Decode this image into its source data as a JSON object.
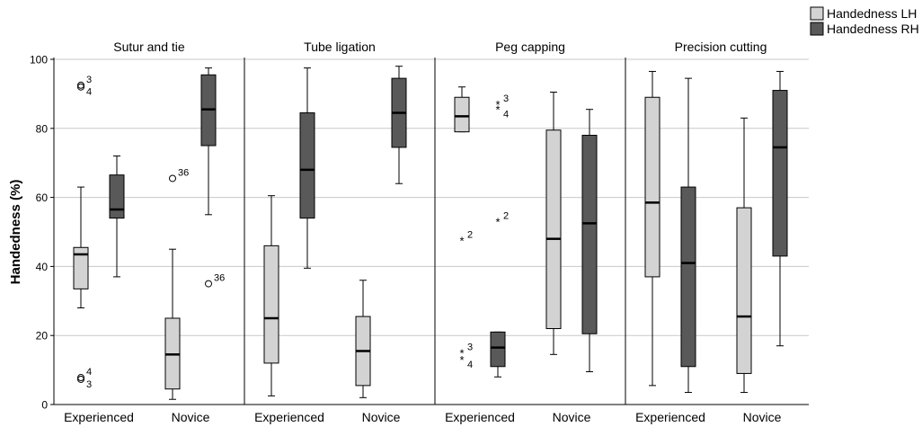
{
  "chart_data": {
    "type": "boxplot",
    "ylabel": "Handedness (%)",
    "ylim": [
      0,
      100
    ],
    "yticks": [
      0,
      20,
      40,
      60,
      80,
      100
    ],
    "grid": true,
    "legend_position": "top-right",
    "legend": [
      {
        "name": "Handedness LH",
        "color": "#d3d3d3"
      },
      {
        "name": "Handedness RH",
        "color": "#595959"
      }
    ],
    "categories": [
      "Experienced",
      "Novice"
    ],
    "panels": [
      {
        "title": "Sutur and tie",
        "boxes": [
          {
            "category": "Experienced",
            "series": "Handedness LH",
            "min": 28,
            "q1": 33.5,
            "median": 43.5,
            "q3": 45.5,
            "max": 63
          },
          {
            "category": "Experienced",
            "series": "Handedness RH",
            "min": 37,
            "q1": 54,
            "median": 56.5,
            "q3": 66.5,
            "max": 72
          },
          {
            "category": "Novice",
            "series": "Handedness LH",
            "min": 1.5,
            "q1": 4.5,
            "median": 14.5,
            "q3": 25,
            "max": 45
          },
          {
            "category": "Novice",
            "series": "Handedness RH",
            "min": 55,
            "q1": 75,
            "median": 85.5,
            "q3": 95.5,
            "max": 97.5
          }
        ],
        "outliers": [
          {
            "category": "Experienced",
            "series": "Handedness LH",
            "value": 92.5,
            "marker": "circle",
            "label": "3"
          },
          {
            "category": "Experienced",
            "series": "Handedness LH",
            "value": 92.0,
            "marker": "circle",
            "label": "4"
          },
          {
            "category": "Experienced",
            "series": "Handedness LH",
            "value": 7.8,
            "marker": "circle",
            "label": "4"
          },
          {
            "category": "Experienced",
            "series": "Handedness LH",
            "value": 7.3,
            "marker": "circle",
            "label": "3"
          },
          {
            "category": "Novice",
            "series": "Handedness LH",
            "value": 65.5,
            "marker": "circle",
            "label": "36"
          },
          {
            "category": "Novice",
            "series": "Handedness RH",
            "value": 35,
            "marker": "circle",
            "label": "36"
          }
        ]
      },
      {
        "title": "Tube ligation",
        "boxes": [
          {
            "category": "Experienced",
            "series": "Handedness LH",
            "min": 2.5,
            "q1": 12,
            "median": 25,
            "q3": 46,
            "max": 60.5
          },
          {
            "category": "Experienced",
            "series": "Handedness RH",
            "min": 39.5,
            "q1": 54,
            "median": 68,
            "q3": 84.5,
            "max": 97.5
          },
          {
            "category": "Novice",
            "series": "Handedness LH",
            "min": 2,
            "q1": 5.5,
            "median": 15.5,
            "q3": 25.5,
            "max": 36
          },
          {
            "category": "Novice",
            "series": "Handedness RH",
            "min": 64,
            "q1": 74.5,
            "median": 84.5,
            "q3": 94.5,
            "max": 98
          }
        ],
        "outliers": []
      },
      {
        "title": "Peg capping",
        "boxes": [
          {
            "category": "Experienced",
            "series": "Handedness LH",
            "min": 79,
            "q1": 79,
            "median": 83.5,
            "q3": 89,
            "max": 92
          },
          {
            "category": "Experienced",
            "series": "Handedness RH",
            "min": 8,
            "q1": 11,
            "median": 16.5,
            "q3": 21,
            "max": 21
          },
          {
            "category": "Novice",
            "series": "Handedness LH",
            "min": 14.5,
            "q1": 22,
            "median": 48,
            "q3": 79.5,
            "max": 90.5
          },
          {
            "category": "Novice",
            "series": "Handedness RH",
            "min": 9.5,
            "q1": 20.5,
            "median": 52.5,
            "q3": 78,
            "max": 85.5
          }
        ],
        "outliers": [
          {
            "category": "Experienced",
            "series": "Handedness LH",
            "value": 47.5,
            "marker": "star",
            "label": "2"
          },
          {
            "category": "Experienced",
            "series": "Handedness LH",
            "value": 15,
            "marker": "star",
            "label": "3"
          },
          {
            "category": "Experienced",
            "series": "Handedness LH",
            "value": 13,
            "marker": "star",
            "label": "4"
          },
          {
            "category": "Experienced",
            "series": "Handedness RH",
            "value": 87,
            "marker": "star",
            "label": "3"
          },
          {
            "category": "Experienced",
            "series": "Handedness RH",
            "value": 85.5,
            "marker": "star",
            "label": "4"
          },
          {
            "category": "Experienced",
            "series": "Handedness RH",
            "value": 53,
            "marker": "star",
            "label": "2"
          }
        ]
      },
      {
        "title": "Precision cutting",
        "boxes": [
          {
            "category": "Experienced",
            "series": "Handedness LH",
            "min": 5.5,
            "q1": 37,
            "median": 58.5,
            "q3": 89,
            "max": 96.5
          },
          {
            "category": "Experienced",
            "series": "Handedness RH",
            "min": 3.5,
            "q1": 11,
            "median": 41,
            "q3": 63,
            "max": 94.5
          },
          {
            "category": "Novice",
            "series": "Handedness LH",
            "min": 3.5,
            "q1": 9,
            "median": 25.5,
            "q3": 57,
            "max": 83
          },
          {
            "category": "Novice",
            "series": "Handedness RH",
            "min": 17,
            "q1": 43,
            "median": 74.5,
            "q3": 91,
            "max": 96.5
          }
        ],
        "outliers": []
      }
    ]
  }
}
